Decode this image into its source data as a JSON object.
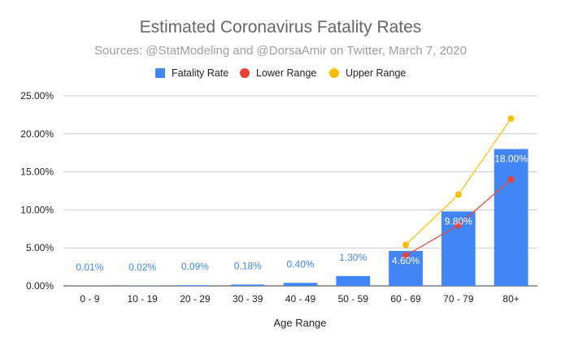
{
  "chart_data": {
    "type": "bar",
    "title": "Estimated Coronavirus Fatality Rates",
    "subtitle": "Sources: @StatModeling and @DorsaAmir on Twitter, March 7, 2020",
    "xlabel": "Age Range",
    "ylabel": "",
    "ylim": [
      0,
      25
    ],
    "yticks": [
      0,
      5,
      10,
      15,
      20,
      25
    ],
    "ytick_labels": [
      "0.00%",
      "5.00%",
      "10.00%",
      "15.00%",
      "20.00%",
      "25.00%"
    ],
    "grid": true,
    "legend_position": "top",
    "categories": [
      "0 - 9",
      "10 - 19",
      "20 - 29",
      "30 - 39",
      "40 - 49",
      "50 - 59",
      "60 - 69",
      "70 - 79",
      "80+"
    ],
    "series": [
      {
        "name": "Fatality Rate",
        "kind": "bar",
        "color": "#4285f4",
        "values": [
          0.01,
          0.02,
          0.09,
          0.18,
          0.4,
          1.3,
          4.6,
          9.8,
          18.0
        ],
        "labels": [
          "0.01%",
          "0.02%",
          "0.09%",
          "0.18%",
          "0.40%",
          "1.30%",
          "4.60%",
          "9.80%",
          "18.00%"
        ]
      },
      {
        "name": "Lower Range",
        "kind": "line",
        "color": "#ea4335",
        "values": [
          null,
          null,
          null,
          null,
          null,
          null,
          4.0,
          8.0,
          14.0
        ]
      },
      {
        "name": "Upper Range",
        "kind": "line",
        "color": "#fbbc04",
        "values": [
          null,
          null,
          null,
          null,
          null,
          null,
          5.4,
          12.0,
          22.0
        ]
      }
    ]
  }
}
